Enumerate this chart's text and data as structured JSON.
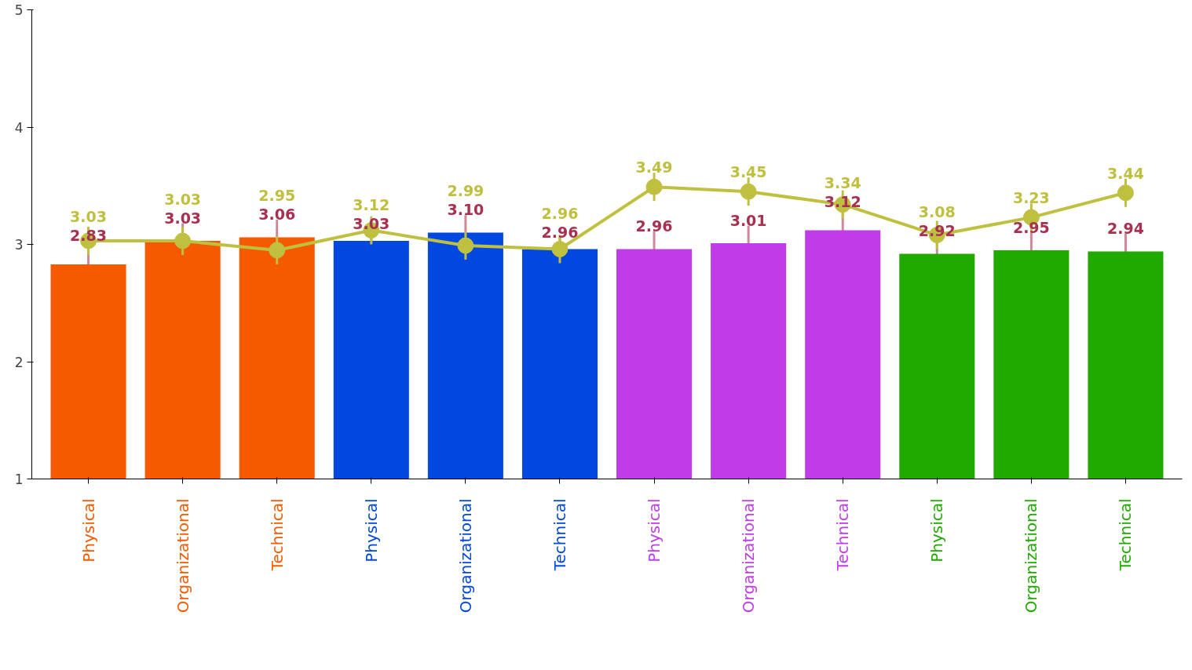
{
  "chart_data": {
    "type": "bar",
    "categories": [
      "Physical",
      "Organizational",
      "Technical",
      "Physical",
      "Organizational",
      "Technical",
      "Physical",
      "Organizational",
      "Technical",
      "Physical",
      "Organizational",
      "Technical"
    ],
    "series": [
      {
        "colors": [
          "#f55a00",
          "#f55a00",
          "#f55a00",
          "#0048e0",
          "#0048e0",
          "#0048e0",
          "#c03ce8",
          "#c03ce8",
          "#c03ce8",
          "#20aa00",
          "#20aa00",
          "#20aa00"
        ],
        "values": [
          2.83,
          3.03,
          3.06,
          3.03,
          3.1,
          2.96,
          2.96,
          3.01,
          3.12,
          2.92,
          2.95,
          2.94
        ],
        "value_labels": [
          "2.83",
          "3.03",
          "3.06",
          "3.03",
          "3.10",
          "2.96",
          "2.96",
          "3.01",
          "3.12",
          "2.92",
          "2.95",
          "2.94"
        ],
        "errors": [
          0.2,
          0.15,
          0.15,
          0.1,
          0.15,
          0.1,
          0.15,
          0.15,
          0.2,
          0.15,
          0.15,
          0.15
        ]
      },
      {
        "type": "line",
        "color": "#c0c040",
        "marker": "circle",
        "values": [
          3.03,
          3.03,
          2.95,
          3.12,
          2.99,
          2.96,
          3.49,
          3.45,
          3.34,
          3.08,
          3.23,
          3.44
        ],
        "value_labels": [
          "3.03",
          "3.03",
          "2.95",
          "3.12",
          "2.99",
          "2.96",
          "3.49",
          "3.45",
          "3.34",
          "3.08",
          "3.23",
          "3.44"
        ],
        "errors": [
          0.12,
          0.12,
          0.12,
          0.12,
          0.12,
          0.12,
          0.12,
          0.12,
          0.12,
          0.12,
          0.12,
          0.12
        ]
      }
    ],
    "ylim": [
      1,
      5
    ],
    "yticks": [
      1,
      2,
      3,
      4,
      5
    ],
    "grid": false
  }
}
